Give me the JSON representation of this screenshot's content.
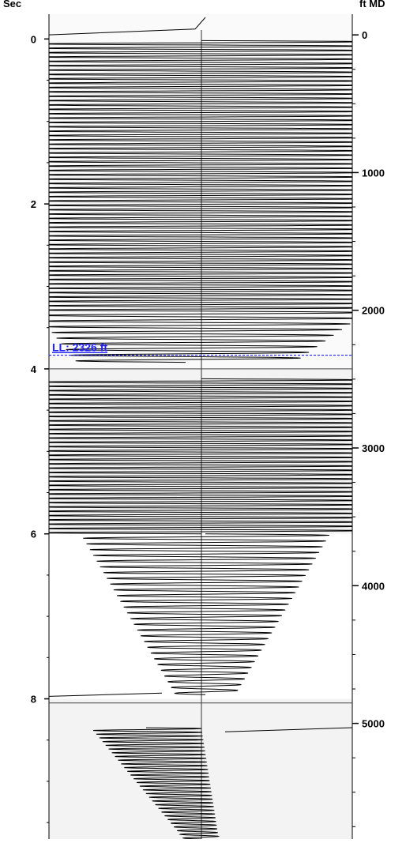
{
  "chart_data": {
    "type": "line",
    "left_axis": {
      "label": "Sec",
      "range": [
        -0.3,
        9.7
      ],
      "ticks": [
        0,
        2,
        4,
        6,
        8
      ],
      "minor_step": 0.5
    },
    "right_axis": {
      "label": "ft MD",
      "range": [
        -150,
        5840
      ],
      "ticks": [
        0,
        1000,
        2000,
        3000,
        4000,
        5000
      ],
      "minor_step": 250
    },
    "marker": {
      "label": "LL: 2326 ft",
      "depth_ft": 2326,
      "color": "#2020ff",
      "style": "dashed"
    },
    "trace": {
      "color": "#000000",
      "description_segments": [
        {
          "from_sec": 0.0,
          "to_sec": 3.3,
          "type": "dense-sweep",
          "cycles": 62,
          "amplitude_sec_equiv": "full width"
        },
        {
          "from_sec": 3.3,
          "to_sec": 3.9,
          "type": "sweep-decaying",
          "cycles": 9
        },
        {
          "from_sec": 4.1,
          "to_sec": 6.0,
          "type": "dense-sweep",
          "cycles": 36
        },
        {
          "from_sec": 6.0,
          "to_sec": 7.95,
          "type": "sweep-decaying",
          "cycles": 28
        },
        {
          "from_sec": 8.3,
          "to_sec": 9.7,
          "type": "sweep-growing-offset",
          "cycles": 30
        }
      ]
    },
    "grid": false,
    "shaded_bands": [
      {
        "from_sec": 4.0,
        "to_sec": 6.0
      },
      {
        "from_sec": 8.0,
        "to_sec": 9.7
      }
    ]
  }
}
